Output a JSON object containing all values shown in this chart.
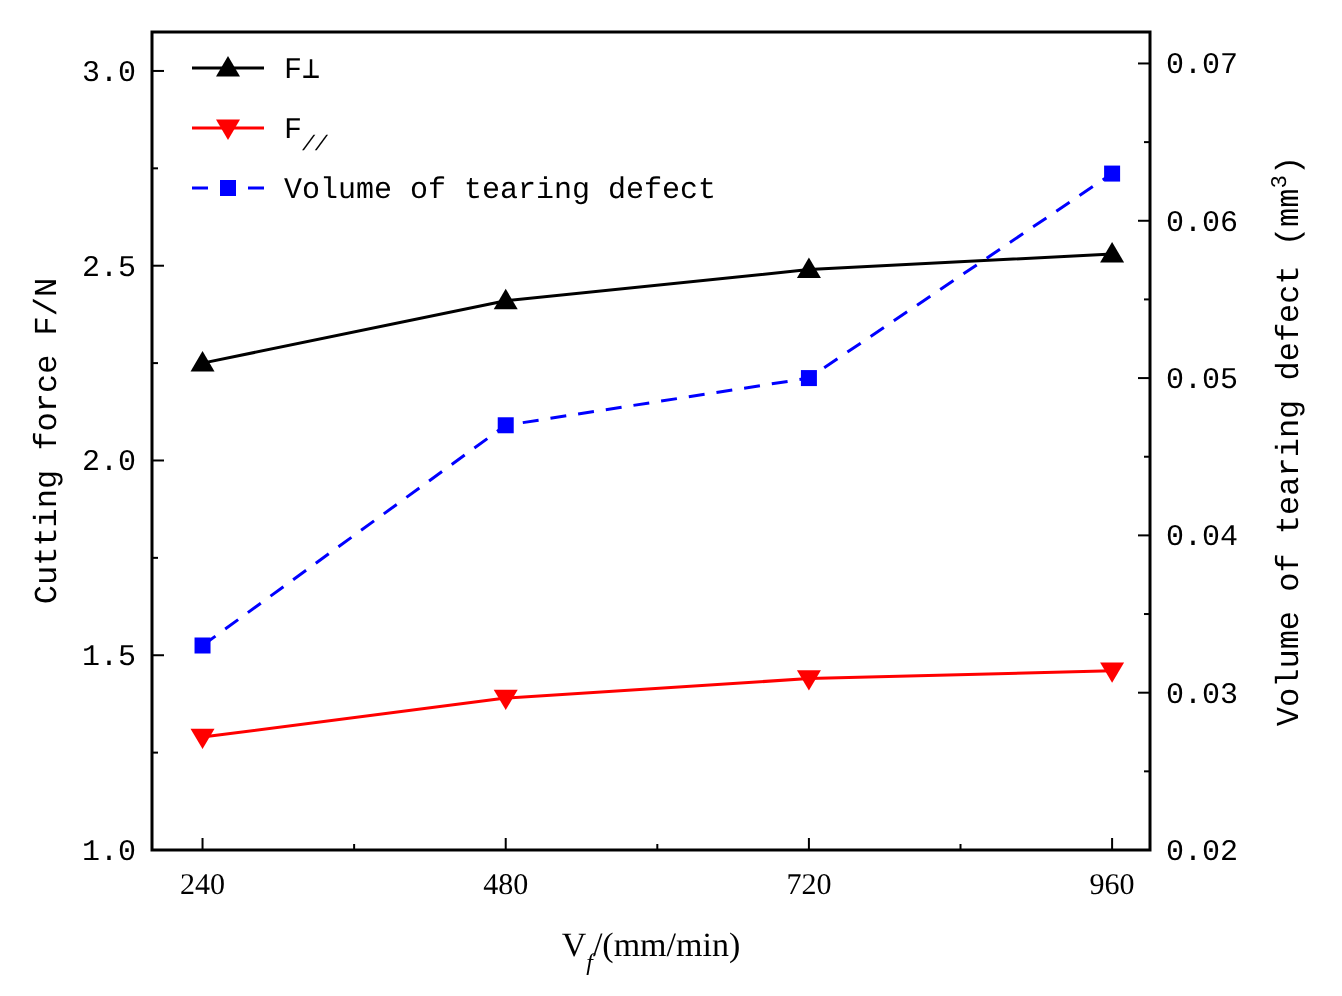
{
  "chart_data": {
    "type": "line",
    "xlabel": "V$_{f}$/(mm/min)",
    "ylabel": "Cutting force F/N",
    "y2label": "Volume of tearing defect (mm$^{3}$)",
    "x": [
      240,
      480,
      720,
      960
    ],
    "xlim": [
      200,
      990
    ],
    "xticks": [
      240,
      480,
      720,
      960
    ],
    "ylim": [
      1.0,
      3.1
    ],
    "yticks": [
      {
        "value": 1.0,
        "label": "1.0"
      },
      1.5,
      {
        "value": 2.0,
        "label": "2.0"
      },
      2.5,
      {
        "value": 3.0,
        "label": "3.0"
      }
    ],
    "y2lim": [
      0.02,
      0.072
    ],
    "y2ticks": [
      0.02,
      0.03,
      0.04,
      0.05,
      0.06,
      0.07
    ],
    "legend": "top left",
    "grid": false,
    "series": [
      {
        "name": "F⊥",
        "color": "#000000",
        "values": [
          2.25,
          2.41,
          2.49,
          2.53
        ],
        "marker": "triangle",
        "line_style": "solid"
      },
      {
        "name": "F$_{//}$",
        "color": "#ff0000",
        "values": [
          1.29,
          1.39,
          1.44,
          1.46
        ],
        "marker": "triangle-down",
        "line_style": "solid"
      },
      {
        "name": "Volume of tearing defect",
        "color": "#0000ff",
        "values": [
          0.033,
          0.047,
          0.05,
          0.063
        ],
        "marker": "square",
        "line_style": "dashed",
        "axis": "y2"
      }
    ]
  }
}
